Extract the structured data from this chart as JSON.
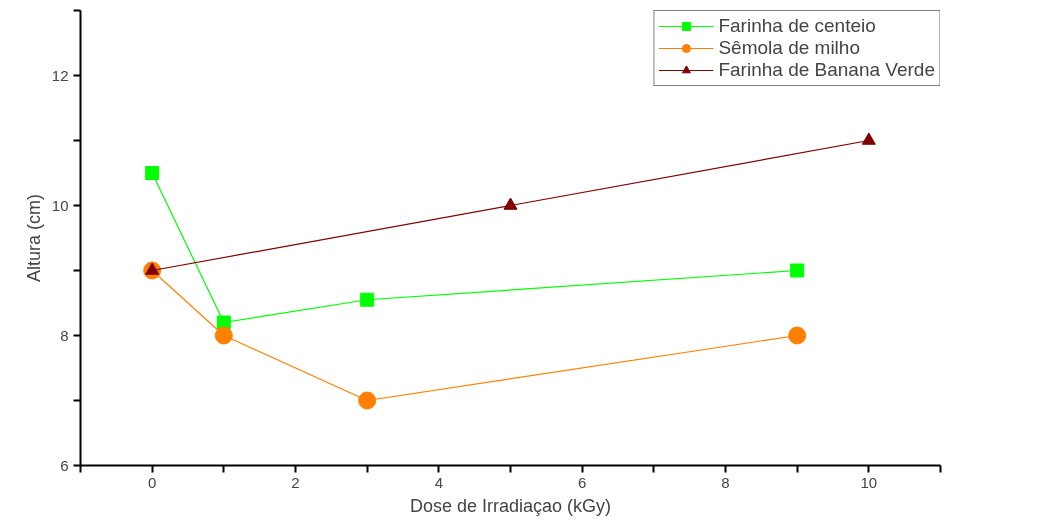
{
  "chart_data": {
    "type": "line",
    "xlabel": "Dose de Irradiaçao (kGy)",
    "ylabel": "Altura (cm)",
    "xlim": [
      -1,
      11
    ],
    "ylim": [
      6,
      13
    ],
    "xticks": [
      {
        "value": -1,
        "label": null
      },
      0,
      {
        "value": 1,
        "label": null
      },
      2,
      {
        "value": 3,
        "label": null
      },
      4,
      {
        "value": 5,
        "label": null
      },
      6,
      {
        "value": 7,
        "label": null
      },
      8,
      {
        "value": 9,
        "label": null
      },
      10,
      {
        "value": 11,
        "label": null
      }
    ],
    "yticks": [
      6,
      {
        "value": 7,
        "label": null
      },
      8,
      {
        "value": 9,
        "label": null
      },
      10,
      {
        "value": 11,
        "label": null
      },
      12,
      {
        "value": 13,
        "label": null
      }
    ],
    "grid": false,
    "legend": "top right",
    "series": [
      {
        "name": "Farinha de centeio",
        "color": "#00ff00",
        "marker": "square",
        "x": [
          0,
          1,
          3,
          9
        ],
        "values": [
          10.5,
          8.2,
          8.55,
          9
        ]
      },
      {
        "name": "Sêmola de milho",
        "color": "#ff8000",
        "marker": "circle",
        "x": [
          0,
          1,
          3,
          9
        ],
        "values": [
          9,
          8,
          7,
          8
        ]
      },
      {
        "name": "Farinha de Banana Verde",
        "color": "#800000",
        "marker": "triangle",
        "x": [
          0,
          5,
          10
        ],
        "values": [
          9,
          10,
          11
        ]
      }
    ]
  }
}
